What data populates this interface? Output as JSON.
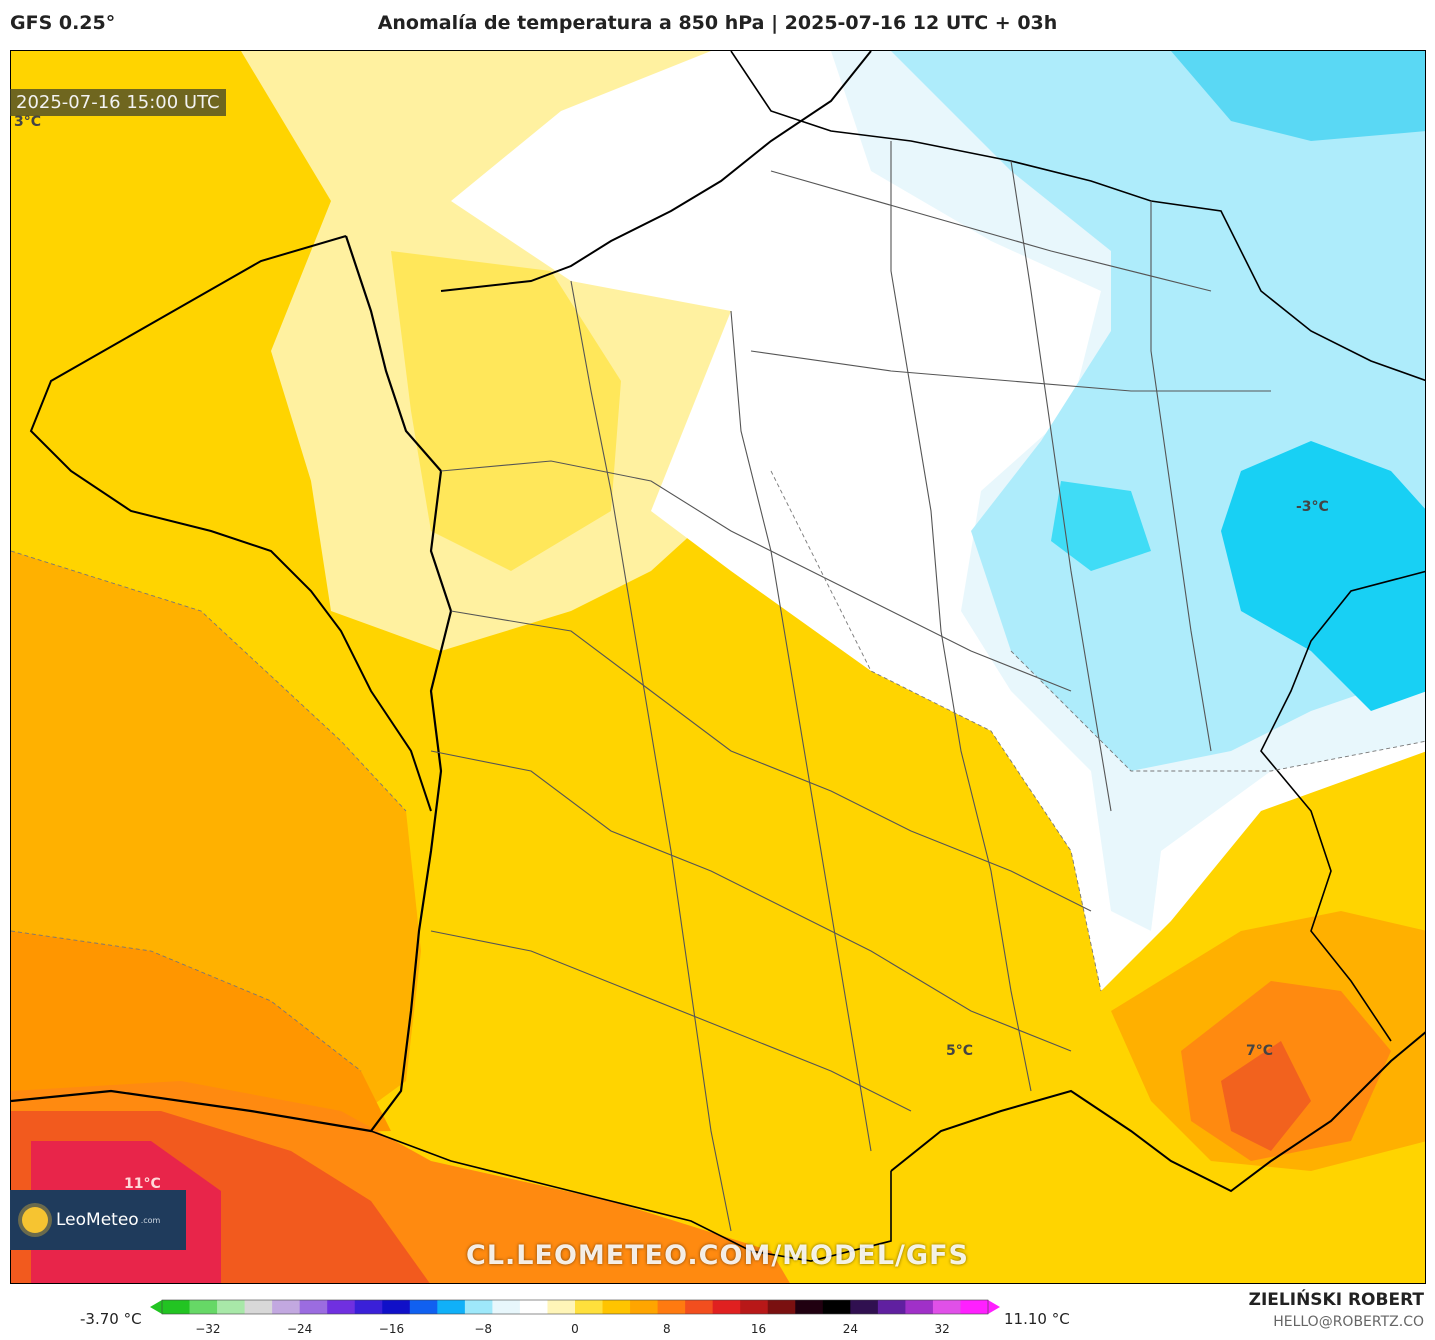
{
  "header": {
    "model": "GFS 0.25°",
    "title": "Anomalía de temperatura a 850 hPa | 2025-07-16 12 UTC + 03h"
  },
  "map": {
    "timestamp": "2025-07-16 15:00 UTC",
    "contour_labels": [
      "3°C",
      "-3°C",
      "5°C",
      "7°C",
      "11°C"
    ]
  },
  "watermark": "CL.LEOMETEO.COM/MODEL/GFS",
  "logo": {
    "name": "LeoMeteo",
    "domain": ".com"
  },
  "colorbar": {
    "min_label": "-3.70 °C",
    "max_label": "11.10 °C",
    "ticks": [
      "−32",
      "−24",
      "−16",
      "−8",
      "0",
      "8",
      "16",
      "24",
      "32"
    ],
    "range": [
      -36,
      36
    ],
    "colors": [
      "#22c422",
      "#66d866",
      "#a8e8a8",
      "#d8d8d8",
      "#c2a8e0",
      "#9b6ce0",
      "#7030e0",
      "#3a20d8",
      "#1010c8",
      "#1060f0",
      "#10b0f8",
      "#9ee8fa",
      "#e8f7fc",
      "#ffffff",
      "#fff5b8",
      "#ffe03c",
      "#ffc400",
      "#ffa500",
      "#ff7a10",
      "#f24e1e",
      "#e02020",
      "#b81818",
      "#7a1010",
      "#200010",
      "#000000",
      "#301050",
      "#6020a0",
      "#a030c8",
      "#e050e8",
      "#ff20ff"
    ]
  },
  "footer": {
    "author": "ZIELIŃSKI ROBERT",
    "email": "HELLO@ROBERTZ.CO"
  },
  "colors": {
    "cold_strong": "#12c8f0",
    "cold": "#9ee8fa",
    "cool": "#e8f7fc",
    "neutral": "#ffffff",
    "warm_pale": "#fff5b8",
    "warm": "#ffe03c",
    "warm_mid": "#ffc400",
    "warm_orange": "#ffa500",
    "hot": "#ff7a10",
    "hotter": "#f24e1e",
    "hottest": "#e0203a"
  }
}
